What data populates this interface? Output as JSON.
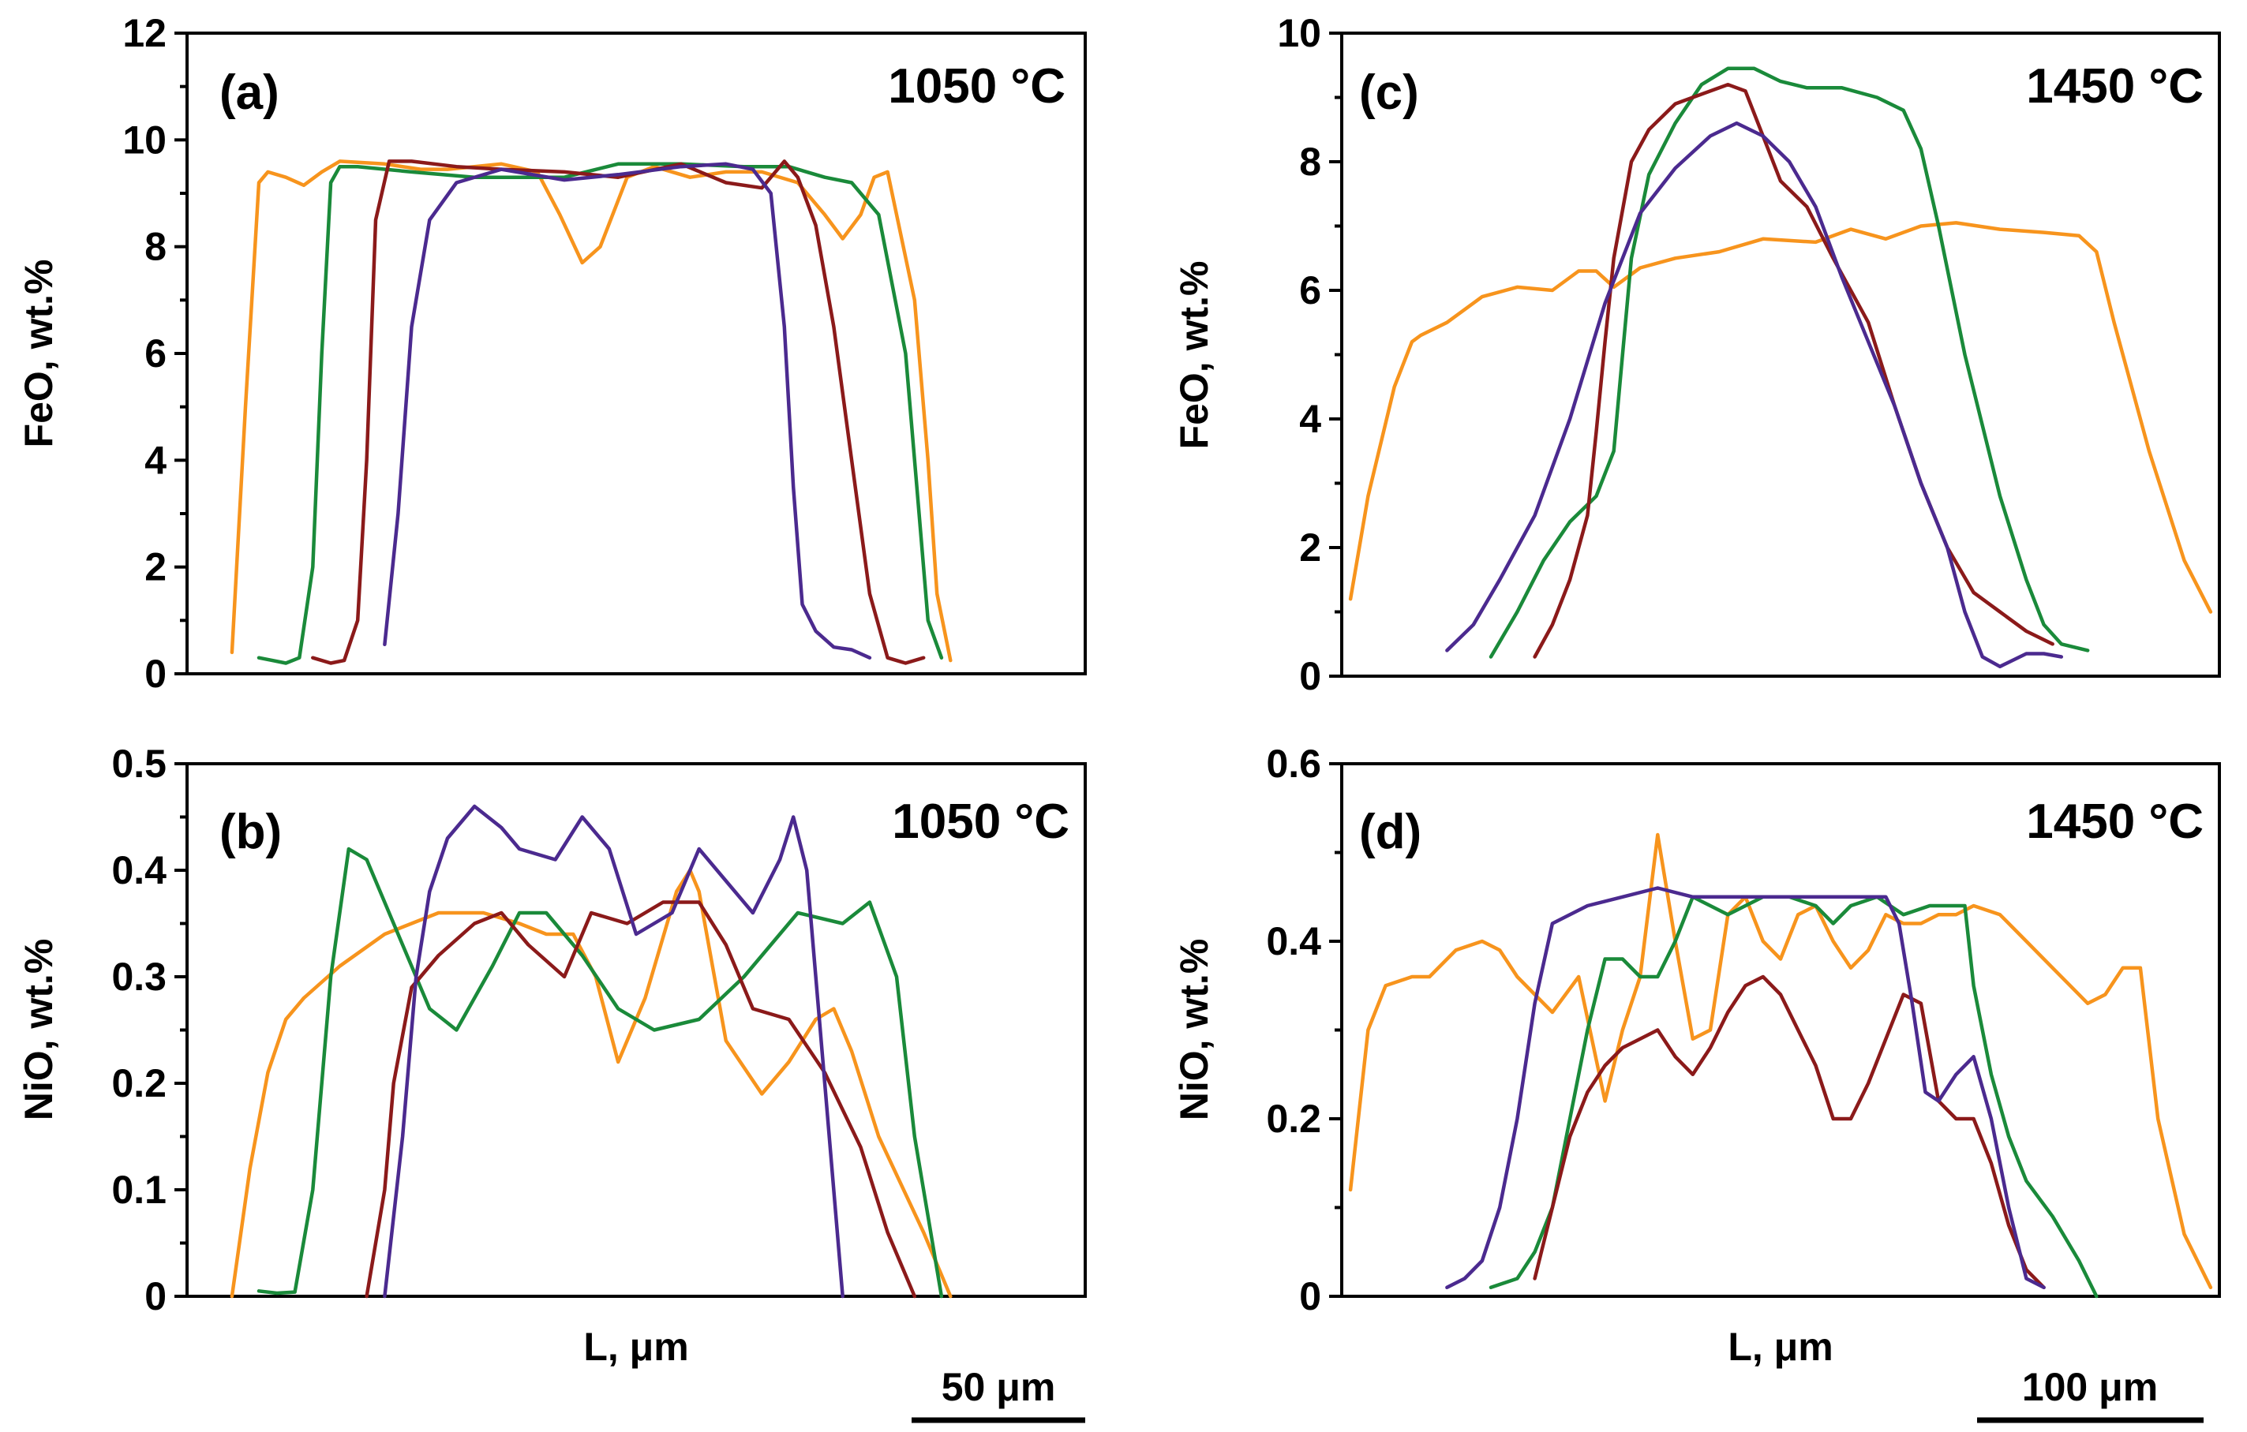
{
  "figure": {
    "x_axis_label": "L, μm",
    "panels": [
      {
        "id": "a",
        "panel_label": "(a)",
        "temperature": "1050 °C",
        "ylabel": "FeO, wt.%",
        "ylim": [
          0,
          12
        ],
        "yticks": [
          0,
          2,
          4,
          6,
          8,
          10,
          12
        ],
        "ytick_labels": [
          "0",
          "2",
          "4",
          "6",
          "8",
          "10",
          "12"
        ],
        "xlim": [
          0,
          100
        ],
        "scale_bar_label": "50 μm"
      },
      {
        "id": "b",
        "panel_label": "(b)",
        "temperature": "1050 °C",
        "ylabel": "NiO, wt.%",
        "ylim": [
          0,
          0.5
        ],
        "yticks": [
          0,
          0.1,
          0.2,
          0.3,
          0.4,
          0.5
        ],
        "ytick_labels": [
          "0",
          "0.1",
          "0.2",
          "0.3",
          "0.4",
          "0.5"
        ],
        "xlim": [
          0,
          100
        ]
      },
      {
        "id": "c",
        "panel_label": "(c)",
        "temperature": "1450 °C",
        "ylabel": "FeO, wt.%",
        "ylim": [
          0,
          10
        ],
        "yticks": [
          0,
          2,
          4,
          6,
          8,
          10
        ],
        "ytick_labels": [
          "0",
          "2",
          "4",
          "6",
          "8",
          "10"
        ],
        "xlim": [
          0,
          100
        ],
        "scale_bar_label": "100 μm"
      },
      {
        "id": "d",
        "panel_label": "(d)",
        "temperature": "1450 °C",
        "ylabel": "NiO, wt.%",
        "ylim": [
          0,
          0.6
        ],
        "yticks": [
          0,
          0.2,
          0.4,
          0.6
        ],
        "ytick_labels": [
          "0",
          "0.2",
          "0.4",
          "0.6"
        ],
        "xlim": [
          0,
          100
        ]
      }
    ]
  },
  "chart_data": [
    {
      "type": "line",
      "panel": "a",
      "title": "1050 °C",
      "xlabel": "",
      "ylabel": "FeO, wt.%",
      "xlim": [
        0,
        100
      ],
      "ylim": [
        0,
        12
      ],
      "series": [
        {
          "name": "orange",
          "color": "#f7941d",
          "x": [
            5,
            6.5,
            8,
            9,
            11,
            13,
            15,
            17,
            22,
            26,
            29,
            32,
            35,
            39,
            41.5,
            44,
            46,
            49,
            52,
            56,
            60,
            64,
            68,
            71,
            73,
            75,
            76.5,
            78,
            81,
            82.5,
            83.5,
            85
          ],
          "y": [
            0.4,
            5,
            9.2,
            9.4,
            9.3,
            9.15,
            9.4,
            9.6,
            9.55,
            9.45,
            9.45,
            9.5,
            9.55,
            9.4,
            8.6,
            7.7,
            8.0,
            9.3,
            9.5,
            9.3,
            9.4,
            9.4,
            9.2,
            8.6,
            8.15,
            8.6,
            9.3,
            9.4,
            7.0,
            4.0,
            1.5,
            0.25
          ]
        },
        {
          "name": "green",
          "color": "#1a8a3a",
          "x": [
            8,
            9.5,
            11,
            12.5,
            14,
            15,
            16,
            17,
            19,
            25,
            32,
            42,
            48,
            55,
            62,
            67,
            71,
            74,
            77,
            80,
            81.5,
            82.5,
            84
          ],
          "y": [
            0.3,
            0.25,
            0.2,
            0.3,
            2.0,
            6.0,
            9.2,
            9.5,
            9.5,
            9.4,
            9.3,
            9.3,
            9.55,
            9.55,
            9.5,
            9.5,
            9.3,
            9.2,
            8.6,
            6.0,
            3.0,
            1.0,
            0.3
          ]
        },
        {
          "name": "dark-red",
          "color": "#8b1a1a",
          "x": [
            14,
            16,
            17.5,
            19,
            20,
            21,
            22.5,
            25,
            30,
            35,
            42,
            48,
            55,
            60,
            64,
            66.5,
            68,
            70,
            72,
            74,
            76,
            78,
            80,
            82
          ],
          "y": [
            0.3,
            0.2,
            0.25,
            1.0,
            4.0,
            8.5,
            9.6,
            9.6,
            9.5,
            9.45,
            9.4,
            9.3,
            9.55,
            9.2,
            9.1,
            9.6,
            9.3,
            8.4,
            6.5,
            4.0,
            1.5,
            0.3,
            0.2,
            0.3
          ]
        },
        {
          "name": "purple",
          "color": "#4b2a8f",
          "x": [
            22,
            23.5,
            25,
            27,
            30,
            35,
            42,
            48,
            55,
            60,
            63,
            65,
            66.5,
            67.5,
            68.5,
            70,
            72,
            74,
            76
          ],
          "y": [
            0.55,
            3.0,
            6.5,
            8.5,
            9.2,
            9.45,
            9.25,
            9.35,
            9.5,
            9.55,
            9.45,
            9.0,
            6.5,
            3.5,
            1.3,
            0.8,
            0.5,
            0.45,
            0.3
          ]
        }
      ]
    },
    {
      "type": "line",
      "panel": "b",
      "title": "1050 °C",
      "xlabel": "L, μm",
      "ylabel": "NiO, wt.%",
      "xlim": [
        0,
        100
      ],
      "ylim": [
        0,
        0.5
      ],
      "series": [
        {
          "name": "orange",
          "color": "#f7941d",
          "x": [
            5,
            7,
            9,
            11,
            13,
            17,
            22,
            28,
            33,
            37,
            40,
            43,
            45.5,
            48,
            51,
            54.5,
            56,
            57,
            60,
            64,
            67,
            70,
            72,
            74,
            77,
            82,
            85
          ],
          "y": [
            0,
            0.12,
            0.21,
            0.26,
            0.28,
            0.31,
            0.34,
            0.36,
            0.36,
            0.35,
            0.34,
            0.34,
            0.3,
            0.22,
            0.28,
            0.38,
            0.4,
            0.38,
            0.24,
            0.19,
            0.22,
            0.26,
            0.27,
            0.23,
            0.15,
            0.06,
            0
          ]
        },
        {
          "name": "green",
          "color": "#1a8a3a",
          "x": [
            8,
            10,
            12,
            14,
            16,
            18,
            20,
            24,
            27,
            30,
            34,
            37,
            40,
            44,
            48,
            52,
            57,
            62,
            68,
            73,
            76,
            79,
            81,
            84
          ],
          "y": [
            0.005,
            0.003,
            0.004,
            0.1,
            0.3,
            0.42,
            0.41,
            0.33,
            0.27,
            0.25,
            0.31,
            0.36,
            0.36,
            0.32,
            0.27,
            0.25,
            0.26,
            0.3,
            0.36,
            0.35,
            0.37,
            0.3,
            0.15,
            0
          ]
        },
        {
          "name": "dark-red",
          "color": "#8b1a1a",
          "x": [
            20,
            22,
            23,
            25,
            28,
            32,
            35,
            38,
            42,
            45,
            49,
            53,
            57,
            60,
            63,
            67,
            71,
            75,
            78,
            81
          ],
          "y": [
            0,
            0.1,
            0.2,
            0.29,
            0.32,
            0.35,
            0.36,
            0.33,
            0.3,
            0.36,
            0.35,
            0.37,
            0.37,
            0.33,
            0.27,
            0.26,
            0.21,
            0.14,
            0.06,
            0
          ]
        },
        {
          "name": "purple",
          "color": "#4b2a8f",
          "x": [
            22,
            24,
            25.5,
            27,
            29,
            32,
            35,
            37,
            41,
            44,
            47,
            50,
            54,
            57,
            60,
            63,
            66,
            67.5,
            69,
            71,
            73
          ],
          "y": [
            0,
            0.15,
            0.3,
            0.38,
            0.43,
            0.46,
            0.44,
            0.42,
            0.41,
            0.45,
            0.42,
            0.34,
            0.36,
            0.42,
            0.39,
            0.36,
            0.41,
            0.45,
            0.4,
            0.2,
            0
          ]
        }
      ]
    },
    {
      "type": "line",
      "panel": "c",
      "title": "1450 °C",
      "xlabel": "",
      "ylabel": "FeO, wt.%",
      "xlim": [
        0,
        100
      ],
      "ylim": [
        0,
        10
      ],
      "series": [
        {
          "name": "orange",
          "color": "#f7941d",
          "x": [
            1,
            3,
            6,
            8,
            9,
            12,
            16,
            20,
            24,
            27,
            29,
            31,
            34,
            38,
            43,
            48,
            54,
            58,
            62,
            66,
            70,
            75,
            80,
            84,
            86,
            88,
            92,
            96,
            99
          ],
          "y": [
            1.2,
            2.8,
            4.5,
            5.2,
            5.3,
            5.5,
            5.9,
            6.05,
            6.0,
            6.3,
            6.3,
            6.05,
            6.35,
            6.5,
            6.6,
            6.8,
            6.75,
            6.95,
            6.8,
            7.0,
            7.05,
            6.95,
            6.9,
            6.85,
            6.6,
            5.5,
            3.5,
            1.8,
            1.0
          ]
        },
        {
          "name": "green",
          "color": "#1a8a3a",
          "x": [
            17,
            20,
            23,
            26,
            29,
            31,
            32,
            33,
            35,
            38,
            41,
            44,
            47,
            50,
            53,
            57,
            61,
            64,
            66,
            68,
            71,
            75,
            78,
            80,
            82,
            85
          ],
          "y": [
            0.3,
            1.0,
            1.8,
            2.4,
            2.8,
            3.5,
            5.0,
            6.5,
            7.8,
            8.6,
            9.2,
            9.45,
            9.45,
            9.25,
            9.15,
            9.15,
            9.0,
            8.8,
            8.2,
            7.0,
            5.0,
            2.8,
            1.5,
            0.8,
            0.5,
            0.4
          ]
        },
        {
          "name": "dark-red",
          "color": "#8b1a1a",
          "x": [
            22,
            24,
            26,
            28,
            29,
            30,
            31,
            33,
            35,
            38,
            41,
            44,
            46,
            48,
            50,
            53,
            56,
            60,
            63,
            66,
            69,
            72,
            75,
            78,
            81
          ],
          "y": [
            0.3,
            0.8,
            1.5,
            2.5,
            3.8,
            5.2,
            6.5,
            8.0,
            8.5,
            8.9,
            9.05,
            9.2,
            9.1,
            8.4,
            7.7,
            7.3,
            6.5,
            5.5,
            4.2,
            3.0,
            2.0,
            1.3,
            1.0,
            0.7,
            0.5
          ]
        },
        {
          "name": "purple",
          "color": "#4b2a8f",
          "x": [
            12,
            15,
            18,
            22,
            26,
            30,
            34,
            38,
            42,
            45,
            48,
            51,
            54,
            57,
            60,
            63,
            66,
            69,
            71,
            73,
            75,
            78,
            80,
            82
          ],
          "y": [
            0.4,
            0.8,
            1.5,
            2.5,
            4.0,
            5.8,
            7.2,
            7.9,
            8.4,
            8.6,
            8.4,
            8.0,
            7.3,
            6.2,
            5.2,
            4.2,
            3.0,
            2.0,
            1.0,
            0.3,
            0.15,
            0.35,
            0.35,
            0.3
          ]
        }
      ]
    },
    {
      "type": "line",
      "panel": "d",
      "title": "1450 °C",
      "xlabel": "L, μm",
      "ylabel": "NiO, wt.%",
      "xlim": [
        0,
        100
      ],
      "ylim": [
        0,
        0.6
      ],
      "series": [
        {
          "name": "orange",
          "color": "#f7941d",
          "x": [
            1,
            3,
            5,
            8,
            10,
            13,
            16,
            18,
            20,
            22,
            24,
            27,
            30,
            32,
            34,
            36,
            38,
            40,
            42,
            44,
            46,
            48,
            50,
            52,
            54,
            56,
            58,
            60,
            62,
            64,
            66,
            68,
            70,
            72,
            75,
            78,
            81,
            83,
            85,
            87,
            89,
            91,
            93,
            96,
            99
          ],
          "y": [
            0.12,
            0.3,
            0.35,
            0.36,
            0.36,
            0.39,
            0.4,
            0.39,
            0.36,
            0.34,
            0.32,
            0.36,
            0.22,
            0.3,
            0.36,
            0.52,
            0.4,
            0.29,
            0.3,
            0.43,
            0.45,
            0.4,
            0.38,
            0.43,
            0.44,
            0.4,
            0.37,
            0.39,
            0.43,
            0.42,
            0.42,
            0.43,
            0.43,
            0.44,
            0.43,
            0.4,
            0.37,
            0.35,
            0.33,
            0.34,
            0.37,
            0.37,
            0.2,
            0.07,
            0.01
          ]
        },
        {
          "name": "green",
          "color": "#1a8a3a",
          "x": [
            17,
            20,
            22,
            24,
            26,
            28,
            30,
            32,
            34,
            36,
            38,
            40,
            42,
            44,
            46,
            48,
            51,
            54,
            56,
            58,
            61,
            64,
            67,
            69,
            71,
            72,
            74,
            76,
            78,
            81,
            84,
            86
          ],
          "y": [
            0.01,
            0.02,
            0.05,
            0.1,
            0.2,
            0.3,
            0.38,
            0.38,
            0.36,
            0.36,
            0.4,
            0.45,
            0.44,
            0.43,
            0.44,
            0.45,
            0.45,
            0.44,
            0.42,
            0.44,
            0.45,
            0.43,
            0.44,
            0.44,
            0.44,
            0.35,
            0.25,
            0.18,
            0.13,
            0.09,
            0.04,
            0
          ]
        },
        {
          "name": "dark-red",
          "color": "#8b1a1a",
          "x": [
            22,
            24,
            26,
            28,
            30,
            32,
            34,
            36,
            38,
            40,
            42,
            44,
            46,
            48,
            50,
            52,
            54,
            56,
            58,
            60,
            62,
            64,
            66,
            68,
            70,
            72,
            74,
            76,
            78,
            80
          ],
          "y": [
            0.02,
            0.1,
            0.18,
            0.23,
            0.26,
            0.28,
            0.29,
            0.3,
            0.27,
            0.25,
            0.28,
            0.32,
            0.35,
            0.36,
            0.34,
            0.3,
            0.26,
            0.2,
            0.2,
            0.24,
            0.29,
            0.34,
            0.33,
            0.22,
            0.2,
            0.2,
            0.15,
            0.08,
            0.03,
            0.01
          ]
        },
        {
          "name": "purple",
          "color": "#4b2a8f",
          "x": [
            12,
            14,
            16,
            18,
            20,
            22,
            24,
            26,
            28,
            32,
            36,
            40,
            44,
            48,
            52,
            56,
            60,
            62,
            63.5,
            65,
            66.5,
            68,
            70,
            72,
            74,
            76,
            78,
            80
          ],
          "y": [
            0.01,
            0.02,
            0.04,
            0.1,
            0.2,
            0.33,
            0.42,
            0.43,
            0.44,
            0.45,
            0.46,
            0.45,
            0.45,
            0.45,
            0.45,
            0.45,
            0.45,
            0.45,
            0.42,
            0.33,
            0.23,
            0.22,
            0.25,
            0.27,
            0.2,
            0.1,
            0.02,
            0.01
          ]
        }
      ]
    }
  ]
}
